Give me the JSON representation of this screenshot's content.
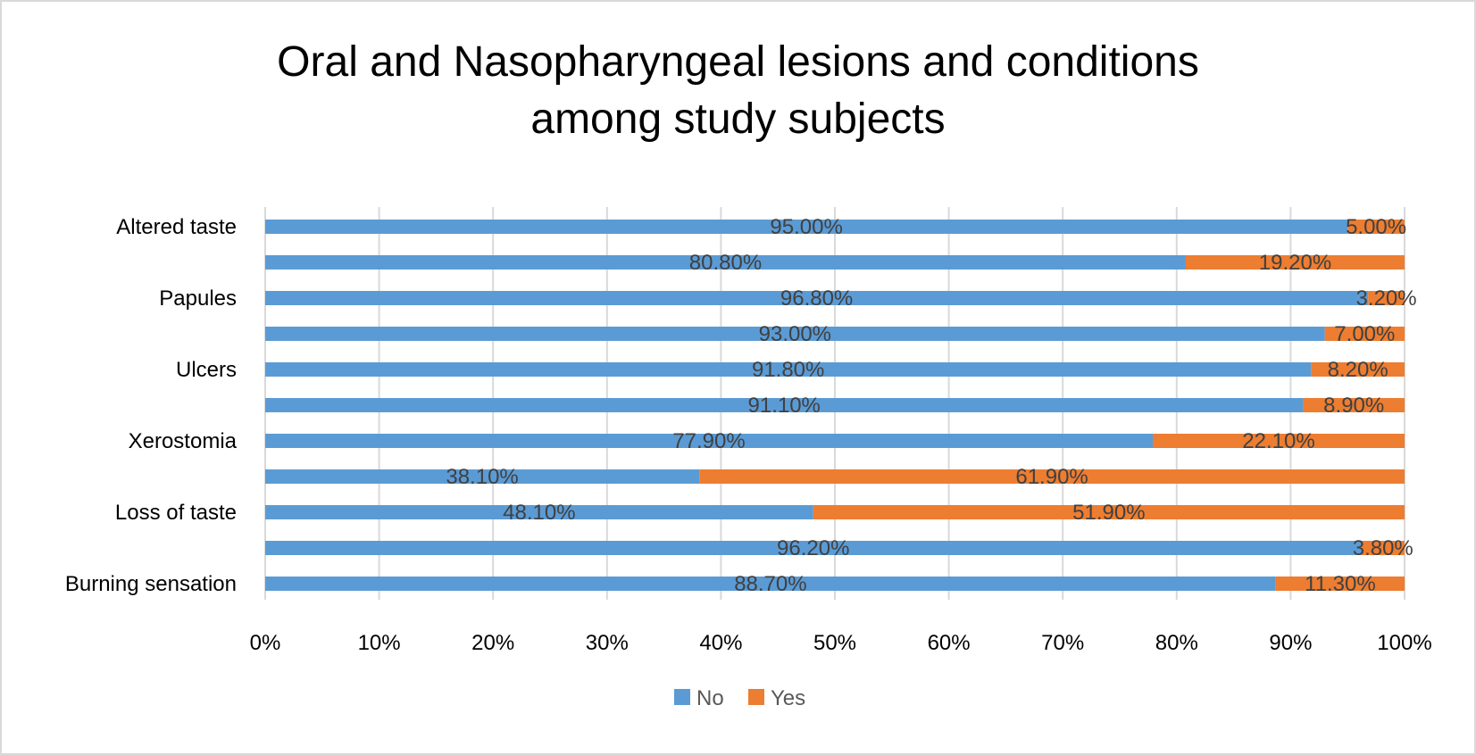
{
  "chart_data": {
    "type": "bar",
    "orientation": "horizontal",
    "stacked": "percent",
    "title": "Oral and Nasopharyngeal lesions and conditions among study subjects",
    "title_lines": [
      "Oral and Nasopharyngeal lesions and conditions",
      "among study subjects"
    ],
    "xlabel": "",
    "ylabel": "",
    "xlim": [
      0,
      100
    ],
    "x_ticks": [
      "0%",
      "10%",
      "20%",
      "30%",
      "40%",
      "50%",
      "60%",
      "70%",
      "80%",
      "90%",
      "100%"
    ],
    "grid": true,
    "legend_position": "bottom",
    "categories_top_to_bottom": [
      "Altered taste",
      "",
      "Papules",
      "",
      "Ulcers",
      "",
      "Xerostomia",
      "",
      "Loss of taste",
      "",
      "Burning sensation"
    ],
    "series": [
      {
        "name": "No",
        "color": "#5b9bd5",
        "values": [
          95.0,
          80.8,
          96.8,
          93.0,
          91.8,
          91.1,
          77.9,
          38.1,
          48.1,
          96.2,
          88.7
        ],
        "labels": [
          "95.00%",
          "80.80%",
          "96.80%",
          "93.00%",
          "91.80%",
          "91.10%",
          "77.90%",
          "38.10%",
          "48.10%",
          "96.20%",
          "88.70%"
        ]
      },
      {
        "name": "Yes",
        "color": "#ed7d31",
        "values": [
          5.0,
          19.2,
          3.2,
          7.0,
          8.2,
          8.9,
          22.1,
          61.9,
          51.9,
          3.8,
          11.3
        ],
        "labels": [
          "5.00%",
          "19.20%",
          "3.20%",
          "7.00%",
          "8.20%",
          "8.90%",
          "22.10%",
          "61.90%",
          "51.90%",
          "3.80%",
          "11.30%"
        ]
      }
    ]
  }
}
